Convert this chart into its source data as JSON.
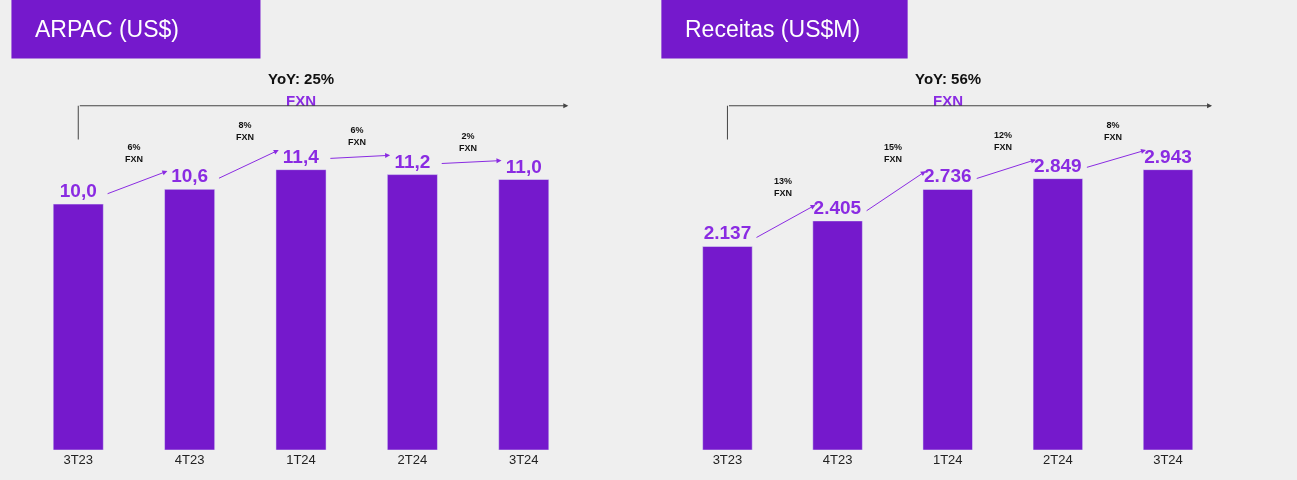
{
  "chart_data": [
    {
      "type": "bar",
      "title": "ARPAC (US$)",
      "categories": [
        "3T23",
        "4T23",
        "1T24",
        "2T24",
        "3T24"
      ],
      "values": [
        10.0,
        10.6,
        11.4,
        11.2,
        11.0
      ],
      "value_labels": [
        "10,0",
        "10,6",
        "11,4",
        "11,2",
        "11,0"
      ],
      "color": "#7519cc",
      "tick_labels": "x",
      "grid": false,
      "annotations": [
        "YoY: 25%",
        "FXN",
        "6%\nFXN",
        "8%\nFXN",
        "6%\nFXN",
        "2%\nFXN"
      ]
    },
    {
      "type": "bar",
      "title": "Receitas (US$M)",
      "categories": [
        "3T23",
        "4T23",
        "1T24",
        "2T24",
        "3T24"
      ],
      "values": [
        2137,
        2405,
        2736,
        2849,
        2943
      ],
      "value_labels": [
        "2.137",
        "2.405",
        "2.736",
        "2.849",
        "2.943"
      ],
      "color": "#7519cc",
      "tick_labels": "x",
      "grid": false,
      "annotations": [
        "YoY: 56%",
        "FXN",
        "13%\nFXN",
        "15%\nFXN",
        "12%\nFXN",
        "8%\nFXN"
      ]
    }
  ]
}
